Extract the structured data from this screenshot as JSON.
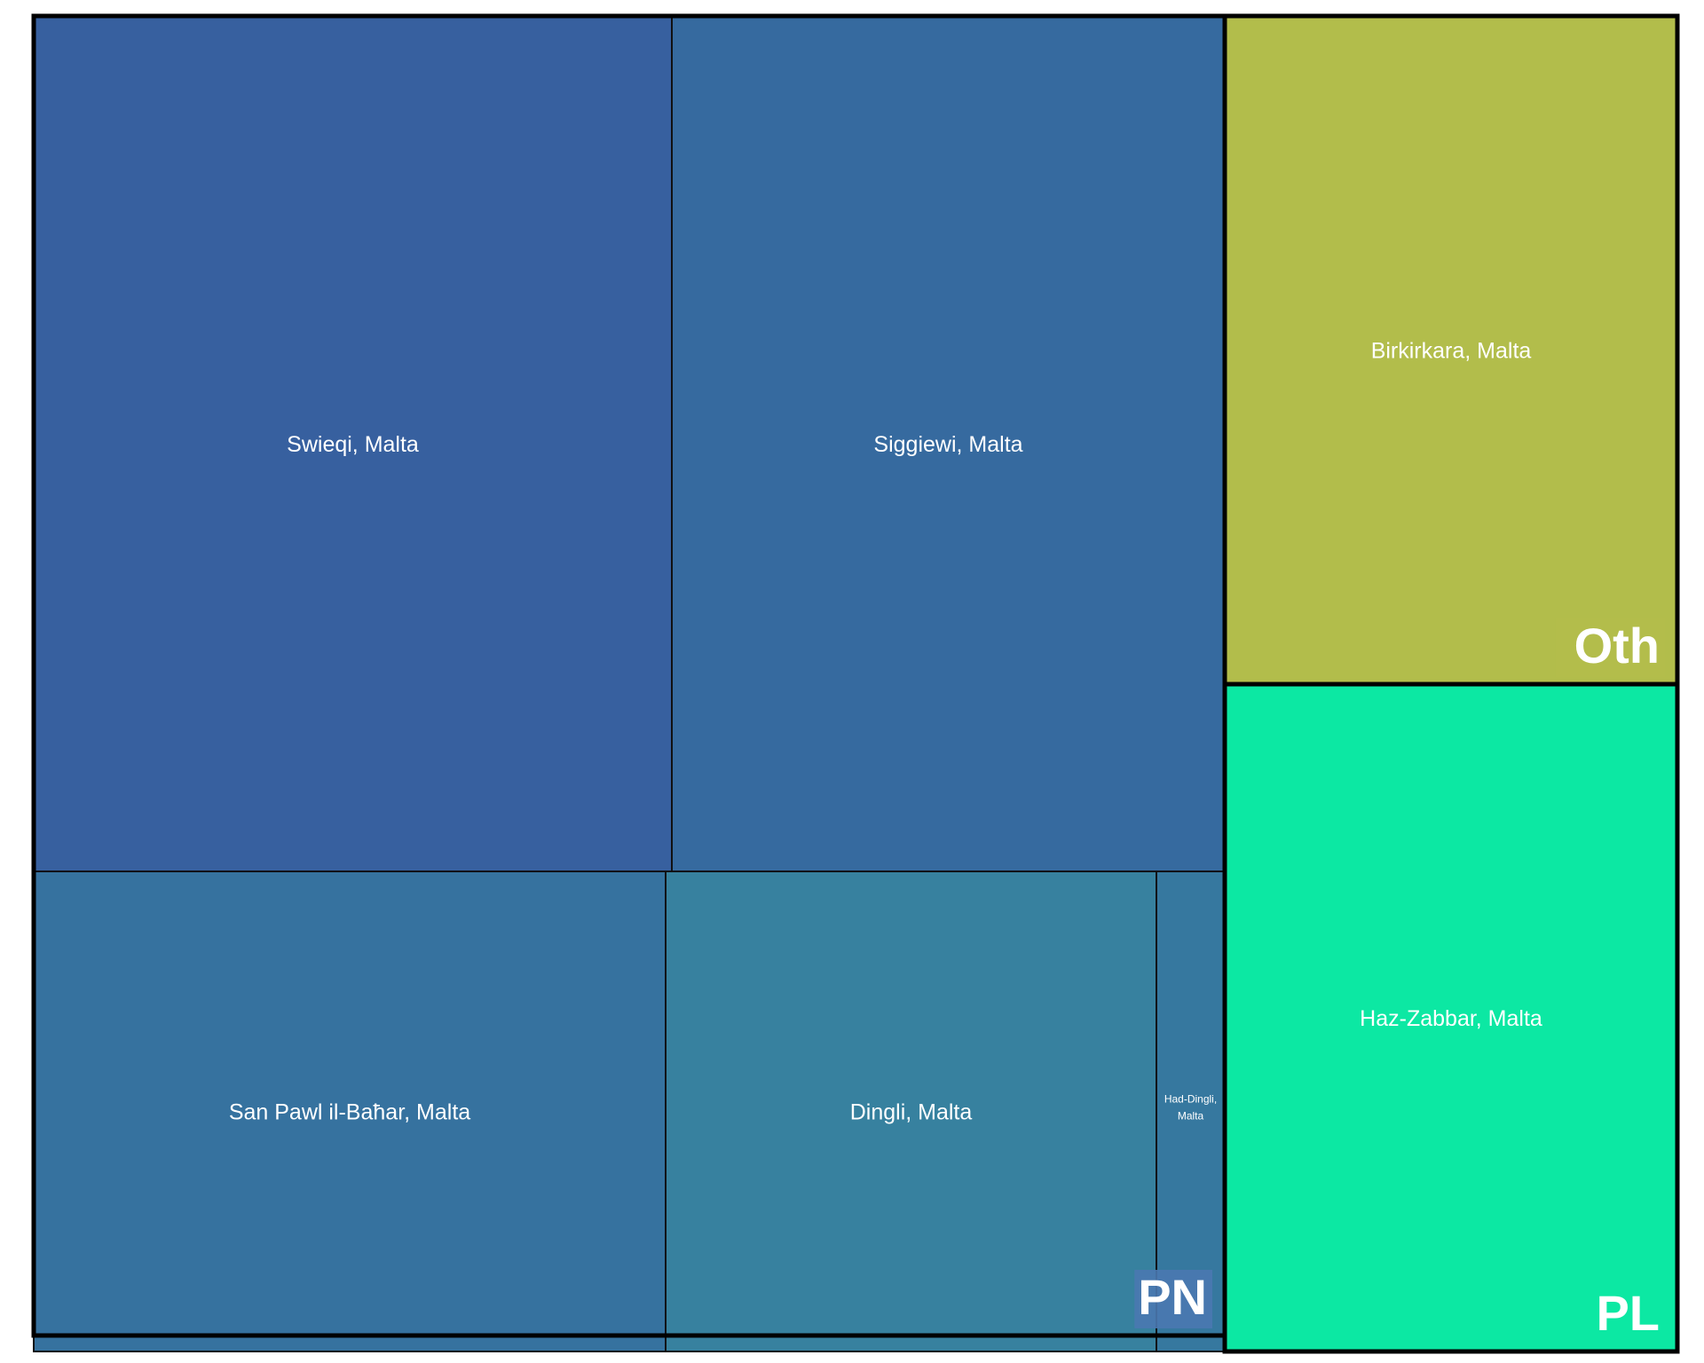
{
  "chart_data": {
    "type": "treemap",
    "groups": [
      {
        "name": "PN",
        "color": "#4a78b0",
        "children": [
          {
            "label": "Swieqi, Malta",
            "color": "#37609f"
          },
          {
            "label": "Siggiewi, Malta",
            "color": "#366a9f"
          },
          {
            "label": "San Pawl il-Baħar, Malta",
            "color": "#36729f"
          },
          {
            "label": "Dingli, Malta",
            "color": "#37819f"
          },
          {
            "label": "Had-Dingli, Malta",
            "color": "#36789f"
          }
        ]
      },
      {
        "name": "Oth",
        "color": "#b2bd4b",
        "children": [
          {
            "label": "Birkirkara, Malta",
            "color": "#b2bd4b"
          }
        ]
      },
      {
        "name": "PL",
        "color": "#0ce8a3",
        "children": [
          {
            "label": "Haz-Zabbar, Malta",
            "color": "#0ce8a3"
          }
        ]
      }
    ]
  }
}
